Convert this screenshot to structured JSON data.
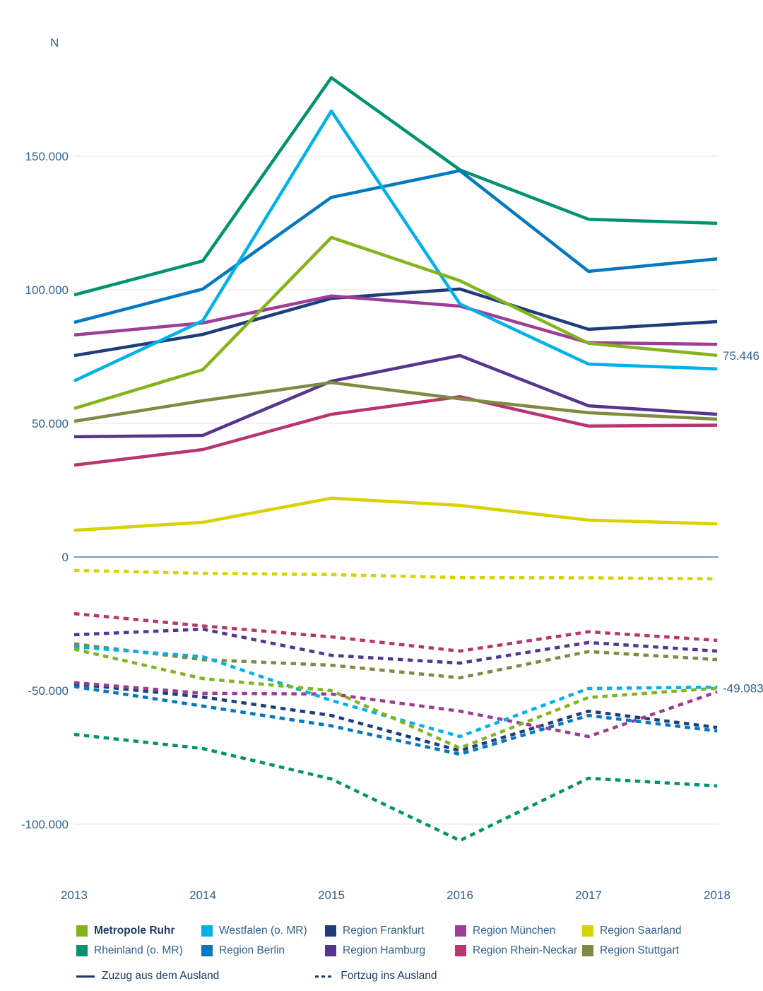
{
  "chart_data": {
    "type": "line",
    "title": "",
    "ylabel": "N",
    "xlabel": "",
    "grid": true,
    "legend_position": "bottom",
    "x": [
      2013,
      2014,
      2015,
      2016,
      2017,
      2018
    ],
    "x_tick_labels": [
      "2013",
      "2014",
      "2015",
      "2016",
      "2017",
      "2018"
    ],
    "y_ticks": [
      {
        "value": 150000,
        "label": "150.000"
      },
      {
        "value": 100000,
        "label": "100.000"
      },
      {
        "value": 50000,
        "label": "50.000"
      },
      {
        "value": 0,
        "label": "0"
      },
      {
        "value": -50000,
        "label": "-50.000"
      },
      {
        "value": -100000,
        "label": "-100.000"
      }
    ],
    "ylim": [
      -115000,
      185000
    ],
    "line_styles": {
      "solid": "Zuzug aus dem Ausland",
      "dotted": "Fortzug ins Ausland"
    },
    "series": [
      {
        "label": "Metropole Ruhr",
        "color": "#82b41c",
        "bold": true,
        "zuzug": [
          55600,
          70100,
          119600,
          103400,
          80000,
          75446
        ],
        "fortzug": [
          -34500,
          -45500,
          -50000,
          -71500,
          -52600,
          -49083
        ]
      },
      {
        "label": "Westfalen (o. MR)",
        "color": "#00b2e8",
        "zuzug": [
          65900,
          88400,
          166900,
          94700,
          72200,
          70400
        ],
        "fortzug": [
          -33600,
          -37300,
          -53700,
          -67200,
          -49200,
          -48700
        ]
      },
      {
        "label": "Region Frankfurt",
        "color": "#1f3d7d",
        "zuzug": [
          75400,
          83300,
          96800,
          100300,
          85200,
          88100
        ],
        "fortzug": [
          -47500,
          -52400,
          -59300,
          -72500,
          -57700,
          -63800
        ]
      },
      {
        "label": "Region München",
        "color": "#9d3d96",
        "zuzug": [
          83100,
          87600,
          97700,
          93900,
          80200,
          79600
        ],
        "fortzug": [
          -47000,
          -51000,
          -51300,
          -57700,
          -67200,
          -50500
        ]
      },
      {
        "label": "Region Saarland",
        "color": "#d8d200",
        "zuzug": [
          10000,
          13000,
          22000,
          19300,
          13800,
          12400
        ],
        "fortzug": [
          -5000,
          -6100,
          -6600,
          -7700,
          -7800,
          -8200
        ]
      },
      {
        "label": "Rheinland (o. MR)",
        "color": "#00936f",
        "zuzug": [
          98100,
          110800,
          179400,
          144900,
          126400,
          124900
        ],
        "fortzug": [
          -66400,
          -71700,
          -83100,
          -106100,
          -82800,
          -85700
        ]
      },
      {
        "label": "Region Berlin",
        "color": "#0079c1",
        "zuzug": [
          87800,
          100300,
          134600,
          144600,
          106900,
          111600
        ],
        "fortzug": [
          -48500,
          -55800,
          -63200,
          -73800,
          -59300,
          -65100
        ]
      },
      {
        "label": "Region Hamburg",
        "color": "#54368f",
        "zuzug": [
          45000,
          45500,
          65800,
          75400,
          56600,
          53400
        ],
        "fortzug": [
          -29100,
          -27000,
          -36800,
          -39700,
          -32000,
          -35200
        ]
      },
      {
        "label": "Region Rhein-Neckar",
        "color": "#b8356f",
        "zuzug": [
          34400,
          40200,
          53400,
          60000,
          49000,
          49300
        ],
        "fortzug": [
          -21200,
          -25800,
          -29900,
          -35200,
          -28000,
          -31200
        ]
      },
      {
        "label": "Region Stuttgart",
        "color": "#7e8b42",
        "zuzug": [
          50800,
          58500,
          65300,
          59200,
          54000,
          51600
        ],
        "fortzug": [
          -32500,
          -38400,
          -40500,
          -45200,
          -35400,
          -38400
        ]
      }
    ],
    "annotations": [
      {
        "text": "75.446",
        "value": 75446,
        "series": "Metropole Ruhr",
        "line": "zuzug"
      },
      {
        "text": "-49.083",
        "value": -49083,
        "series": "Metropole Ruhr",
        "line": "fortzug"
      }
    ],
    "colors": {
      "axis_text": "#33618e",
      "gridline": "#ededed",
      "zero_line": "#7b9bbd",
      "legend_dark_text": "#1b3a64"
    }
  }
}
